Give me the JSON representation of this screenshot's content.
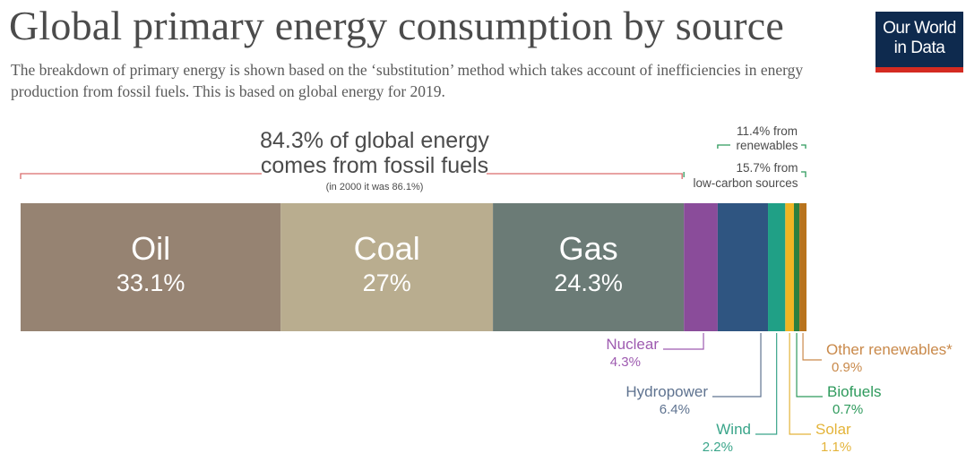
{
  "header": {
    "title": "Global primary energy consumption by source",
    "subtitle": "The breakdown of primary energy is shown based on the ‘substitution’ method which takes account of inefficiencies in energy production from fossil fuels. This is based on global energy for 2019.",
    "logo_line1": "Our World",
    "logo_line2": "in Data"
  },
  "annotations": {
    "fossil_line1": "84.3% of global energy",
    "fossil_line2": "comes from fossil fuels",
    "fossil_note": "(in 2000 it was 86.1%)",
    "renewables_line1": "11.4% from",
    "renewables_line2": "renewables",
    "lowcarbon_line1": "15.7% from",
    "lowcarbon_line2": "low-carbon sources"
  },
  "colors": {
    "text": "#4b4b4b",
    "bracket": "#d96c6c",
    "green_bracket": "#2e9a5c",
    "logo_bg": "#0e2a4e",
    "logo_accent": "#d42b21"
  },
  "chart_data": {
    "type": "bar",
    "orientation": "horizontal-stacked",
    "unit": "%",
    "year": 2019,
    "categories": [
      "Oil",
      "Coal",
      "Gas",
      "Nuclear",
      "Hydropower",
      "Wind",
      "Solar",
      "Biofuels",
      "Other renewables*"
    ],
    "values": [
      33.1,
      27,
      24.3,
      4.3,
      6.4,
      2.2,
      1.1,
      0.7,
      0.9
    ],
    "value_labels": [
      "33.1%",
      "27%",
      "24.3%",
      "4.3%",
      "6.4%",
      "2.2%",
      "1.1%",
      "0.7%",
      "0.9%"
    ],
    "colors": [
      "#968372",
      "#b9ad8f",
      "#6b7b76",
      "#8a4c9a",
      "#2f5581",
      "#20a086",
      "#f0b523",
      "#2b7f3f",
      "#b8731d"
    ],
    "label_colors": [
      "#ffffff",
      "#ffffff",
      "#ffffff",
      "#9e5bb0",
      "#5f7390",
      "#3aa58a",
      "#e4b43a",
      "#2e9a5c",
      "#c9894a"
    ]
  }
}
